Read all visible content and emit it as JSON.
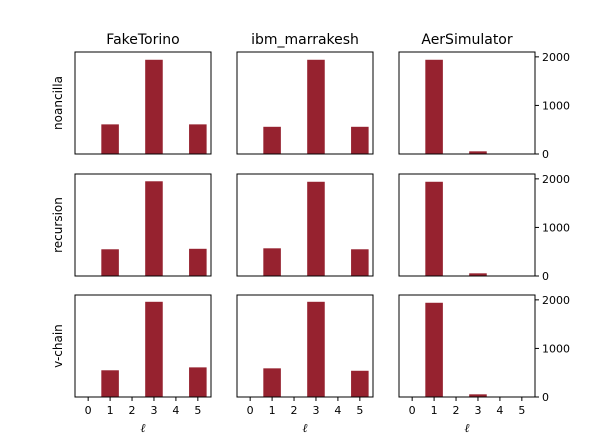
{
  "chart_data": {
    "type": "bar",
    "layout": "grid-3x3",
    "columns": [
      "FakeTorino",
      "ibm_marrakesh",
      "AerSimulator"
    ],
    "rows": [
      "noancilla",
      "recursion",
      "v-chain"
    ],
    "xlabel": "ℓ",
    "x_ticks": [
      "0",
      "1",
      "2",
      "3",
      "4",
      "5"
    ],
    "y_ticks": [
      "0",
      "1000",
      "2000"
    ],
    "ylim": [
      0,
      2100
    ],
    "bar_color": "#96222f",
    "panels": [
      {
        "row": "noancilla",
        "column": "FakeTorino",
        "x": [
          1,
          3,
          5
        ],
        "values": [
          610,
          1940,
          610
        ]
      },
      {
        "row": "noancilla",
        "column": "ibm_marrakesh",
        "x": [
          1,
          3,
          5
        ],
        "values": [
          560,
          1940,
          560
        ]
      },
      {
        "row": "noancilla",
        "column": "AerSimulator",
        "x": [
          1,
          3
        ],
        "values": [
          1940,
          55
        ]
      },
      {
        "row": "recursion",
        "column": "FakeTorino",
        "x": [
          1,
          3,
          5
        ],
        "values": [
          550,
          1950,
          560
        ]
      },
      {
        "row": "recursion",
        "column": "ibm_marrakesh",
        "x": [
          1,
          3,
          5
        ],
        "values": [
          570,
          1940,
          550
        ]
      },
      {
        "row": "recursion",
        "column": "AerSimulator",
        "x": [
          1,
          3
        ],
        "values": [
          1940,
          55
        ]
      },
      {
        "row": "v-chain",
        "column": "FakeTorino",
        "x": [
          1,
          3,
          5
        ],
        "values": [
          550,
          1960,
          610
        ]
      },
      {
        "row": "v-chain",
        "column": "ibm_marrakesh",
        "x": [
          1,
          3,
          5
        ],
        "values": [
          590,
          1960,
          540
        ]
      },
      {
        "row": "v-chain",
        "column": "AerSimulator",
        "x": [
          1,
          3
        ],
        "values": [
          1940,
          55
        ]
      }
    ]
  }
}
